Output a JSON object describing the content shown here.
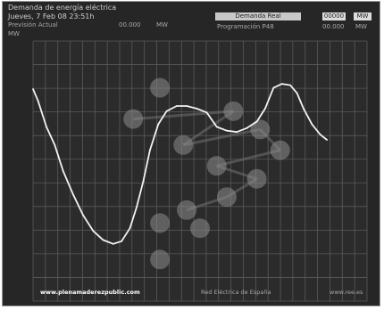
{
  "header": {
    "title": "Demanda de energía eléctrica",
    "subtitle": "Jueves, 7 Feb 08 23:51h",
    "real_label": "Demanda Real",
    "real_value": "00000",
    "real_unit": "MW",
    "forecast_label": "Previsión Actual",
    "forecast_value": "00.000",
    "forecast_unit": "MW",
    "programmed_label": "Programación P48",
    "programmed_value": "00.000",
    "programmed_unit": "MW",
    "axis_unit": "MW"
  },
  "footer": {
    "watermark": "www.plenamaderezpublic.com",
    "source": "Red Eléctrica de España",
    "url": "www.ree.es"
  },
  "colors": {
    "background": "#262626",
    "grid": "#5a5a5a",
    "line": "#f2f2f2",
    "dots": "#8c8c8c",
    "text": "#cfcfcf"
  },
  "chart_data": {
    "type": "line",
    "title": "Demanda de energía eléctrica",
    "ylabel": "MW",
    "y_tick_labels": [
      "",
      "",
      "",
      "",
      "",
      "",
      "",
      "",
      "",
      "",
      ""
    ],
    "grid": true,
    "series": [
      {
        "values": [
          {
            "x": 0,
            "y": 0.815
          },
          {
            "x": 0.015,
            "y": 0.77
          },
          {
            "x": 0.04,
            "y": 0.67
          },
          {
            "x": 0.065,
            "y": 0.6
          },
          {
            "x": 0.09,
            "y": 0.5
          },
          {
            "x": 0.12,
            "y": 0.41
          },
          {
            "x": 0.15,
            "y": 0.33
          },
          {
            "x": 0.18,
            "y": 0.27
          },
          {
            "x": 0.21,
            "y": 0.235
          },
          {
            "x": 0.24,
            "y": 0.22
          },
          {
            "x": 0.265,
            "y": 0.23
          },
          {
            "x": 0.29,
            "y": 0.28
          },
          {
            "x": 0.31,
            "y": 0.36
          },
          {
            "x": 0.33,
            "y": 0.46
          },
          {
            "x": 0.35,
            "y": 0.58
          },
          {
            "x": 0.375,
            "y": 0.68
          },
          {
            "x": 0.4,
            "y": 0.73
          },
          {
            "x": 0.43,
            "y": 0.75
          },
          {
            "x": 0.46,
            "y": 0.75
          },
          {
            "x": 0.49,
            "y": 0.74
          },
          {
            "x": 0.52,
            "y": 0.725
          },
          {
            "x": 0.55,
            "y": 0.67
          },
          {
            "x": 0.58,
            "y": 0.655
          },
          {
            "x": 0.61,
            "y": 0.65
          },
          {
            "x": 0.64,
            "y": 0.665
          },
          {
            "x": 0.67,
            "y": 0.69
          },
          {
            "x": 0.695,
            "y": 0.74
          },
          {
            "x": 0.72,
            "y": 0.82
          },
          {
            "x": 0.745,
            "y": 0.835
          },
          {
            "x": 0.77,
            "y": 0.83
          },
          {
            "x": 0.79,
            "y": 0.8
          },
          {
            "x": 0.81,
            "y": 0.74
          },
          {
            "x": 0.835,
            "y": 0.68
          },
          {
            "x": 0.86,
            "y": 0.64
          },
          {
            "x": 0.88,
            "y": 0.62
          }
        ]
      }
    ]
  }
}
